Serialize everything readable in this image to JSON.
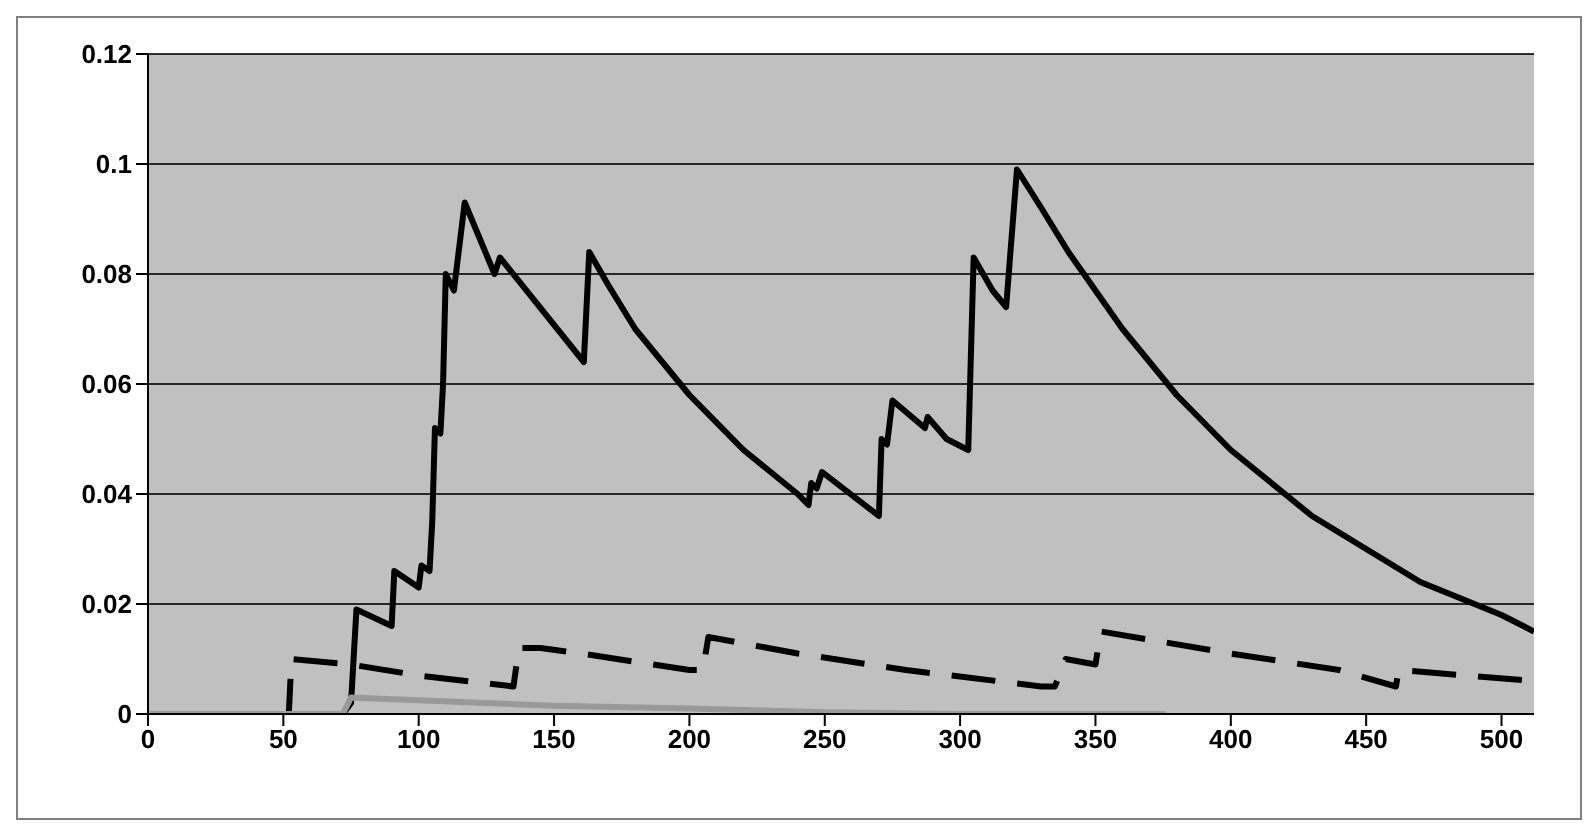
{
  "chart_data": {
    "type": "line",
    "xlim": [
      0,
      512
    ],
    "xticks": [
      0,
      50,
      100,
      150,
      200,
      250,
      300,
      350,
      400,
      450,
      500
    ],
    "ylim": [
      0,
      0.12
    ],
    "yticks": [
      0,
      0.02,
      0.04,
      0.06,
      0.08,
      0.1,
      0.12
    ],
    "grid": "y",
    "marker": "none",
    "series": [
      {
        "color": "#000000",
        "line_style": "solid",
        "x": [
          0,
          72,
          75,
          77,
          90,
          91,
          100,
          101,
          104,
          105,
          106,
          108,
          109,
          110,
          113,
          117,
          128,
          130,
          161,
          163,
          170,
          180,
          190,
          200,
          210,
          220,
          230,
          240,
          244,
          245,
          247,
          249,
          270,
          271,
          273,
          275,
          287,
          288,
          295,
          303,
          305,
          312,
          317,
          321,
          330,
          340,
          350,
          360,
          370,
          380,
          390,
          400,
          410,
          420,
          430,
          440,
          450,
          460,
          470,
          480,
          490,
          500,
          512
        ],
        "values": [
          0,
          0,
          0.002,
          0.019,
          0.016,
          0.026,
          0.023,
          0.027,
          0.026,
          0.035,
          0.052,
          0.051,
          0.06,
          0.08,
          0.077,
          0.093,
          0.08,
          0.083,
          0.064,
          0.084,
          0.078,
          0.07,
          0.064,
          0.058,
          0.053,
          0.048,
          0.044,
          0.04,
          0.038,
          0.042,
          0.041,
          0.044,
          0.036,
          0.05,
          0.049,
          0.057,
          0.052,
          0.054,
          0.05,
          0.048,
          0.083,
          0.077,
          0.074,
          0.099,
          0.092,
          0.084,
          0.077,
          0.07,
          0.064,
          0.058,
          0.053,
          0.048,
          0.044,
          0.04,
          0.036,
          0.033,
          0.03,
          0.027,
          0.024,
          0.022,
          0.02,
          0.018,
          0.015
        ]
      },
      {
        "color": "#000000",
        "line_style": "dashed",
        "x": [
          0,
          52,
          53,
          75,
          100,
          135,
          137,
          145,
          160,
          200,
          205,
          207,
          240,
          280,
          330,
          335,
          339,
          350,
          352,
          400,
          440,
          461,
          462,
          512
        ],
        "values": [
          0,
          0,
          0.01,
          0.009,
          0.007,
          0.005,
          0.012,
          0.012,
          0.011,
          0.008,
          0.008,
          0.014,
          0.011,
          0.008,
          0.005,
          0.005,
          0.01,
          0.009,
          0.015,
          0.011,
          0.008,
          0.005,
          0.008,
          0.006
        ]
      },
      {
        "color": "#999999",
        "line_style": "solid",
        "x": [
          0,
          72,
          75,
          100,
          150,
          200,
          250,
          300,
          376
        ],
        "values": [
          0,
          0,
          0.003,
          0.0025,
          0.0015,
          0.001,
          0.0003,
          0,
          0
        ]
      }
    ]
  }
}
